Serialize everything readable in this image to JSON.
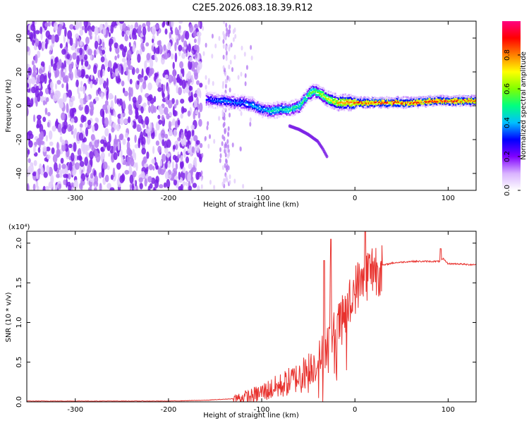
{
  "page_title": "C2E5.2026.083.18.39.R12",
  "chart_data": [
    {
      "type": "heatmap",
      "title": "C2E5.2026.083.18.39.R12",
      "xlabel": "Height of straight line (km)",
      "ylabel": "Frequency (Hz)",
      "xlim": [
        -352,
        130
      ],
      "ylim": [
        -50,
        50
      ],
      "x_ticks": [
        -300,
        -200,
        -100,
        0,
        100
      ],
      "y_ticks": [
        -40,
        -20,
        0,
        20,
        40
      ],
      "colorbar": {
        "label": "Normalized spectral amplitude",
        "range": [
          0,
          1
        ],
        "ticks": [
          0.0,
          0.2,
          0.4,
          0.6,
          0.8
        ],
        "colors": [
          "#ffffff",
          "#d9b3ff",
          "#8000ff",
          "#0000ff",
          "#00c0ff",
          "#00ff80",
          "#80ff00",
          "#ffff00",
          "#ff8000",
          "#ff0000",
          "#ff0080"
        ]
      },
      "features": {
        "noise_region_x": [
          -352,
          -165
        ],
        "signal_trace": {
          "x": [
            -160,
            -150,
            -140,
            -130,
            -120,
            -110,
            -100,
            -90,
            -80,
            -70,
            -60,
            -50,
            -45,
            -40,
            -30,
            -20,
            -10,
            0,
            20,
            40,
            60,
            80,
            100,
            120,
            130
          ],
          "y": [
            4,
            3,
            3,
            2,
            2,
            0,
            -2,
            -3,
            -2,
            -2,
            0,
            7,
            9,
            8,
            4,
            2,
            2,
            2,
            2,
            2,
            2,
            3,
            3,
            3,
            3
          ],
          "amplitude": [
            0.3,
            0.35,
            0.35,
            0.35,
            0.35,
            0.4,
            0.4,
            0.45,
            0.45,
            0.5,
            0.5,
            0.55,
            0.55,
            0.6,
            0.65,
            0.75,
            0.8,
            0.85,
            0.88,
            0.88,
            0.86,
            0.88,
            0.86,
            0.86,
            0.86
          ]
        },
        "descending_branch": {
          "x": [
            -70,
            -60,
            -50,
            -40,
            -35,
            -30
          ],
          "y": [
            -12,
            -14,
            -17,
            -21,
            -25,
            -30
          ]
        }
      }
    },
    {
      "type": "line",
      "xlabel": "Height of straight line (km)",
      "ylabel": "SNR (10 * v/v)",
      "multiplier_label": "(x10⁴)",
      "xlim": [
        -352,
        130
      ],
      "ylim": [
        0,
        2.15
      ],
      "x_ticks": [
        -300,
        -200,
        -100,
        0,
        100
      ],
      "y_ticks": [
        "0.0",
        "0.5",
        "1.0",
        "1.5",
        "2.0"
      ],
      "series": [
        {
          "name": "SNR",
          "color": "#e8322e",
          "x": [
            -352,
            -300,
            -250,
            -200,
            -160,
            -130,
            -110,
            -100,
            -80,
            -60,
            -40,
            -30,
            -20,
            -10,
            0,
            10,
            20,
            30,
            40,
            60,
            80,
            90,
            95,
            100,
            110,
            120,
            130
          ],
          "y": [
            0.01,
            0.01,
            0.01,
            0.01,
            0.02,
            0.04,
            0.07,
            0.12,
            0.2,
            0.32,
            0.5,
            0.72,
            0.92,
            1.12,
            1.42,
            1.58,
            1.68,
            1.72,
            1.75,
            1.77,
            1.77,
            1.77,
            1.8,
            1.74,
            1.74,
            1.73,
            1.73
          ],
          "peaks": [
            {
              "x": -33,
              "y": 1.78
            },
            {
              "x": -26,
              "y": 2.05
            },
            {
              "x": 11,
              "y": 2.15
            },
            {
              "x": 92,
              "y": 1.93
            }
          ]
        }
      ]
    }
  ]
}
